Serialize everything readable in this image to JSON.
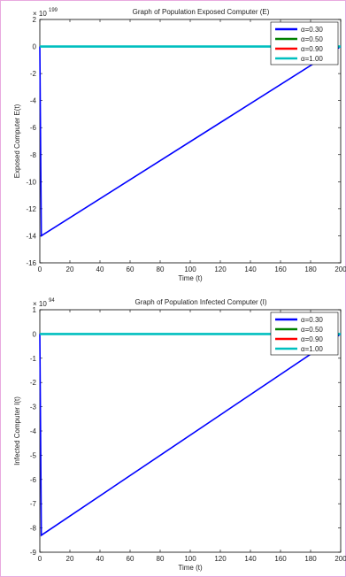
{
  "chart_data": [
    {
      "type": "line",
      "title": "Graph of Population Exposed Computer (E)",
      "xlabel": "Time (t)",
      "ylabel": "Exposed Computer E(t)",
      "y_multiplier": "× 10",
      "y_exponent": "199",
      "xlim": [
        0,
        200
      ],
      "ylim": [
        -16,
        2
      ],
      "xticks": [
        "0",
        "20",
        "40",
        "60",
        "80",
        "100",
        "120",
        "140",
        "160",
        "180",
        "200"
      ],
      "yticks": [
        "2",
        "0",
        "-2",
        "-4",
        "-6",
        "-8",
        "-10",
        "-12",
        "-14",
        "-16"
      ],
      "legend_position": "top-right",
      "series": [
        {
          "name": "α=0.30",
          "color": "#0000ff",
          "x": [
            0,
            0.5,
            1,
            200
          ],
          "y": [
            0,
            -7,
            -14,
            0
          ]
        },
        {
          "name": "α=0.50",
          "color": "#008000",
          "x": [
            0,
            200
          ],
          "y": [
            0,
            0
          ]
        },
        {
          "name": "α=0.90",
          "color": "#ff0000",
          "x": [
            0,
            200
          ],
          "y": [
            0,
            0
          ]
        },
        {
          "name": "α=1.00",
          "color": "#00bfbf",
          "x": [
            0,
            200
          ],
          "y": [
            0,
            0
          ]
        }
      ]
    },
    {
      "type": "line",
      "title": "Graph of Population Infected Computer (I)",
      "xlabel": "Time (t)",
      "ylabel": "Infected Computer I(t)",
      "y_multiplier": "× 10",
      "y_exponent": "94",
      "xlim": [
        0,
        200
      ],
      "ylim": [
        -9,
        1
      ],
      "xticks": [
        "0",
        "20",
        "40",
        "60",
        "80",
        "100",
        "120",
        "140",
        "160",
        "180",
        "200"
      ],
      "yticks": [
        "1",
        "0",
        "-1",
        "-2",
        "-3",
        "-4",
        "-5",
        "-6",
        "-7",
        "-8",
        "-9"
      ],
      "legend_position": "top-right",
      "series": [
        {
          "name": "α=0.30",
          "color": "#0000ff",
          "x": [
            0,
            0.5,
            1,
            200
          ],
          "y": [
            0,
            -4,
            -8.3,
            0
          ]
        },
        {
          "name": "α=0.50",
          "color": "#008000",
          "x": [
            0,
            200
          ],
          "y": [
            0,
            0
          ]
        },
        {
          "name": "α=0.90",
          "color": "#ff0000",
          "x": [
            0,
            200
          ],
          "y": [
            0,
            0
          ]
        },
        {
          "name": "α=1.00",
          "color": "#00bfbf",
          "x": [
            0,
            200
          ],
          "y": [
            0,
            0
          ]
        }
      ]
    }
  ]
}
